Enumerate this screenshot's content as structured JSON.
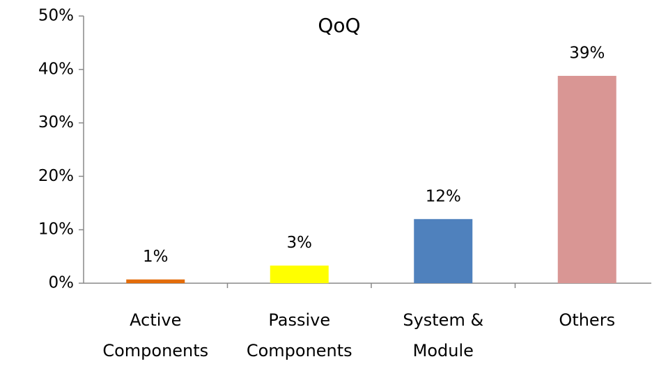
{
  "chart_data": {
    "type": "bar",
    "title": "QoQ",
    "categories": [
      "Active Components",
      "Passive Components",
      "System & Module",
      "Others"
    ],
    "values": [
      0.7,
      3.3,
      12,
      38.8
    ],
    "value_labels": [
      "1%",
      "3%",
      "12%",
      "39%"
    ],
    "colors": [
      "#e36c0a",
      "#ffff00",
      "#4f81bd",
      "#d99694"
    ],
    "ylim": [
      0,
      50
    ],
    "yticks": [
      {
        "value": 0,
        "label": "0%"
      },
      {
        "value": 10,
        "label": "10%"
      },
      {
        "value": 20,
        "label": "20%"
      },
      {
        "value": 30,
        "label": "30%"
      },
      {
        "value": 40,
        "label": "40%"
      },
      {
        "value": 50,
        "label": "50%"
      }
    ]
  }
}
